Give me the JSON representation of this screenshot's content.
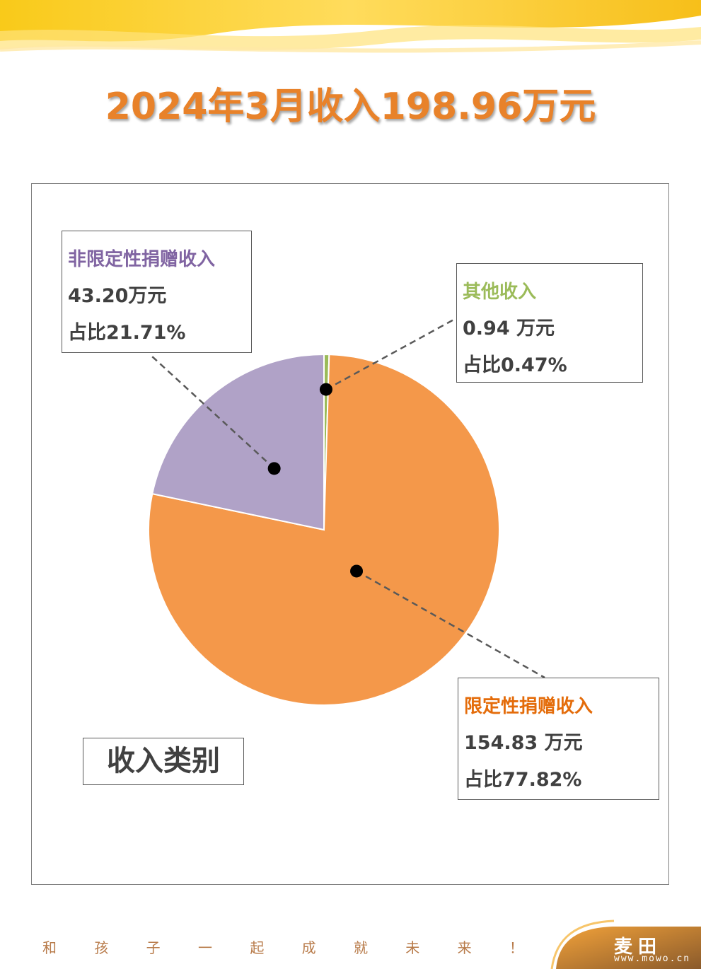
{
  "title": "2024年3月收入198.96万元",
  "category_label": "收入类别",
  "footer": {
    "slogan": [
      "和",
      "孩",
      "子",
      "一",
      "起",
      "成",
      "就",
      "未",
      "来",
      "！"
    ],
    "logo_text": "麦田",
    "logo_url": "www.mowo.cn"
  },
  "callouts": {
    "nonrestricted": {
      "name": "非限定性捐赠收入",
      "amount": "43.20万元",
      "share": "占比21.71%",
      "color": "#8064a2"
    },
    "other": {
      "name": "其他收入",
      "amount": "0.94 万元",
      "share": "占比0.47%",
      "color": "#9bbb59"
    },
    "restricted": {
      "name": "限定性捐赠收入",
      "amount": "154.83 万元",
      "share": "占比77.82%",
      "color": "#e46c0a"
    }
  },
  "chart_data": {
    "type": "pie",
    "title": "2024年3月收入198.96万元",
    "unit": "万元",
    "categories": [
      "其他收入",
      "限定性捐赠收入",
      "非限定性捐赠收入"
    ],
    "values": [
      0.94,
      154.83,
      43.2
    ],
    "percentages": [
      0.47,
      77.82,
      21.71
    ],
    "colors": [
      "#9bbb59",
      "#f4984a",
      "#b0a2c7"
    ],
    "start_angle_deg_clockwise_from_top": 0
  }
}
